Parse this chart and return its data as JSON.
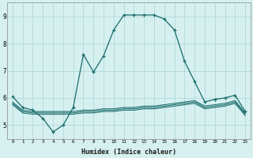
{
  "bg_color": "#d6f0f0",
  "grid_color": "#aad4d4",
  "line_color": "#1a6b6b",
  "xlabel": "Humidex (Indice chaleur)",
  "xlim": [
    -0.5,
    23.5
  ],
  "ylim": [
    4.5,
    9.5
  ],
  "yticks": [
    5,
    6,
    7,
    8,
    9
  ],
  "xticks": [
    0,
    1,
    2,
    3,
    4,
    5,
    6,
    7,
    8,
    9,
    10,
    11,
    12,
    13,
    14,
    15,
    16,
    17,
    18,
    19,
    20,
    21,
    22,
    23
  ],
  "s1_x": [
    0,
    1,
    2,
    3,
    4,
    5,
    6,
    7,
    8,
    9,
    10,
    11,
    12,
    13,
    14,
    15,
    16,
    17,
    18,
    19,
    20,
    21,
    22,
    23
  ],
  "s1_y": [
    6.05,
    5.65,
    5.55,
    5.25,
    4.75,
    5.0,
    5.65,
    7.6,
    6.95,
    7.55,
    8.5,
    9.05,
    9.05,
    9.05,
    9.05,
    8.9,
    8.5,
    7.35,
    6.6,
    5.85,
    5.95,
    6.0,
    6.1,
    5.5
  ],
  "s2_x": [
    0,
    1,
    2,
    3,
    4,
    5,
    6,
    7,
    8,
    9,
    10,
    11,
    12,
    13,
    14,
    15,
    16,
    17,
    18,
    19,
    20,
    21,
    22,
    23
  ],
  "s2_y": [
    5.85,
    5.55,
    5.5,
    5.5,
    5.5,
    5.5,
    5.5,
    5.55,
    5.55,
    5.6,
    5.6,
    5.65,
    5.65,
    5.7,
    5.7,
    5.75,
    5.8,
    5.85,
    5.9,
    5.7,
    5.75,
    5.8,
    5.9,
    5.45
  ],
  "s3_x": [
    0,
    1,
    2,
    3,
    4,
    5,
    6,
    7,
    8,
    9,
    10,
    11,
    12,
    13,
    14,
    15,
    16,
    17,
    18,
    19,
    20,
    21,
    22,
    23
  ],
  "s3_y": [
    5.8,
    5.5,
    5.45,
    5.45,
    5.45,
    5.45,
    5.45,
    5.5,
    5.5,
    5.55,
    5.55,
    5.6,
    5.6,
    5.65,
    5.65,
    5.7,
    5.75,
    5.8,
    5.85,
    5.65,
    5.7,
    5.75,
    5.85,
    5.4
  ],
  "s4_x": [
    0,
    1,
    2,
    3,
    4,
    5,
    6,
    7,
    8,
    9,
    10,
    11,
    12,
    13,
    14,
    15,
    16,
    17,
    18,
    19,
    20,
    21,
    22,
    23
  ],
  "s4_y": [
    5.75,
    5.45,
    5.4,
    5.4,
    5.4,
    5.4,
    5.4,
    5.45,
    5.45,
    5.5,
    5.5,
    5.55,
    5.55,
    5.6,
    5.6,
    5.65,
    5.7,
    5.75,
    5.8,
    5.6,
    5.65,
    5.7,
    5.8,
    5.35
  ]
}
